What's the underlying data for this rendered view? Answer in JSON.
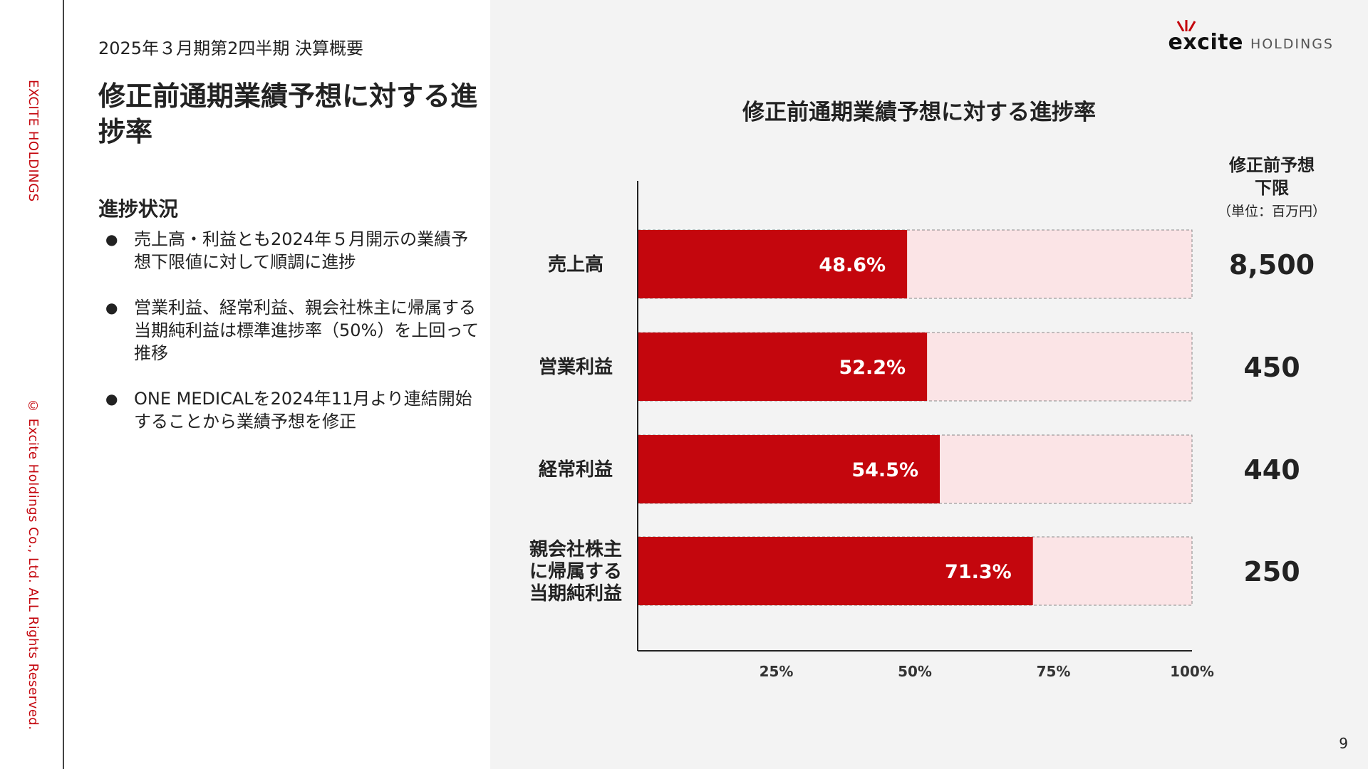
{
  "sidebar": {
    "brand": "EXCITE HOLDINGS",
    "copyright": "© Excite Holdings Co., Ltd. ALL Rights Reserved."
  },
  "header": {
    "doc_title": "2025年３月期第2四半期 決算概要",
    "logo_mark": "excite",
    "logo_sub": "HOLDINGS"
  },
  "slide": {
    "title": "修正前通期業績予想に対する進捗率",
    "section_heading": "進捗状況",
    "bullets": [
      "売上高・利益とも2024年５月開示の業績予想下限値に対して順調に進捗",
      "営業利益、経常利益、親会社株主に帰属する当期純利益は標準進捗率（50%）を上回って推移",
      "ONE MEDICALを2024年11月より連結開始することから業績予想を修正"
    ]
  },
  "chart_header": {
    "forecast_title": "修正前予想\n下限",
    "forecast_unit": "（単位：百万円）"
  },
  "chart_data": {
    "type": "bar",
    "orientation": "horizontal",
    "title": "修正前通期業績予想に対する進捗率",
    "categories": [
      "売上高",
      "営業利益",
      "経常利益",
      "親会社株主\nに帰属する\n当期純利益"
    ],
    "values": [
      48.6,
      52.2,
      54.5,
      71.3
    ],
    "value_labels": [
      "48.6%",
      "52.2%",
      "54.5%",
      "71.3%"
    ],
    "forecast_values": [
      "8,500",
      "450",
      "440",
      "250"
    ],
    "xlim": [
      0,
      100
    ],
    "xticks": [
      25,
      50,
      75,
      100
    ],
    "xtick_labels": [
      "25%",
      "50%",
      "75%",
      "100%"
    ],
    "grid": false,
    "colors": {
      "bar": "#c4060d",
      "remainder": "#fbe4e6",
      "remainder_border": "#888888"
    }
  },
  "page_number": "9"
}
